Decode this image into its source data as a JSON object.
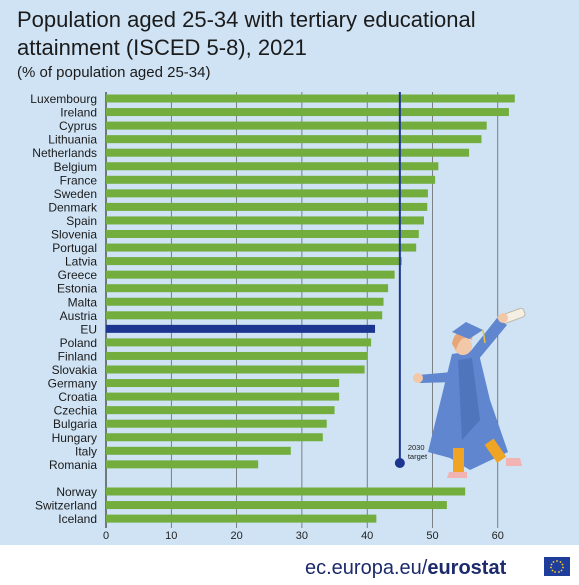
{
  "chart_data": {
    "type": "bar",
    "orientation": "horizontal",
    "title": "Population aged 25-34 with tertiary educational attainment (ISCED 5-8), 2021",
    "subtitle": "(% of population aged 25-34)",
    "categories": [
      "Luxembourg",
      "Ireland",
      "Cyprus",
      "Lithuania",
      "Netherlands",
      "Belgium",
      "France",
      "Sweden",
      "Denmark",
      "Spain",
      "Slovenia",
      "Portugal",
      "Latvia",
      "Greece",
      "Estonia",
      "Malta",
      "Austria",
      "EU",
      "Poland",
      "Finland",
      "Slovakia",
      "Germany",
      "Croatia",
      "Czechia",
      "Bulgaria",
      "Hungary",
      "Italy",
      "Romania",
      "Norway",
      "Switzerland",
      "Iceland"
    ],
    "values": [
      62.6,
      61.7,
      58.3,
      57.5,
      55.6,
      50.9,
      50.4,
      49.3,
      49.2,
      48.7,
      47.9,
      47.5,
      45.3,
      44.2,
      43.2,
      42.5,
      42.3,
      41.2,
      40.6,
      40.1,
      39.6,
      35.7,
      35.7,
      35.0,
      33.8,
      33.2,
      28.3,
      23.3,
      55.0,
      52.2,
      41.4
    ],
    "highlight": "EU",
    "xlim": [
      0,
      65
    ],
    "xticks": [
      0,
      10,
      20,
      30,
      40,
      50,
      60
    ],
    "target_value": 45,
    "target_label": [
      "2030",
      "target"
    ],
    "colors": {
      "bar": "#72ad3e",
      "highlight": "#1b3590",
      "target": "#1b3590",
      "background": "#cfe3f4",
      "grid": "#555555"
    }
  },
  "footer": {
    "domain": "ec.europa.eu/",
    "brand": "eurostat"
  }
}
